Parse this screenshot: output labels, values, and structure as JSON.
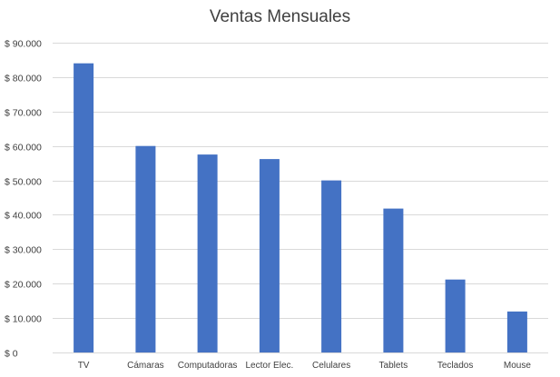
{
  "chart_data": {
    "type": "bar",
    "title": "Ventas Mensuales",
    "xlabel": "",
    "ylabel": "",
    "categories": [
      "TV",
      "Cámaras",
      "Computadoras",
      "Lector Elec.",
      "Celulares",
      "Tablets",
      "Teclados",
      "Mouse"
    ],
    "values": [
      84000,
      60000,
      57500,
      56200,
      50000,
      41800,
      21200,
      11900
    ],
    "ylim": [
      0,
      90000
    ],
    "yticks": [
      0,
      10000,
      20000,
      30000,
      40000,
      50000,
      60000,
      70000,
      80000,
      90000
    ],
    "ytick_labels": [
      "$ 0",
      "$ 10.000",
      "$ 20.000",
      "$ 30.000",
      "$ 40.000",
      "$ 50.000",
      "$ 60.000",
      "$ 70.000",
      "$ 80.000",
      "$ 90.000"
    ],
    "grid": true,
    "legend": "none",
    "bar_color": "#4472C4",
    "grid_color": "#D9D9D9"
  }
}
